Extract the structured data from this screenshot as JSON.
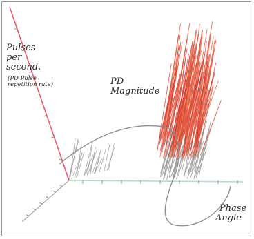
{
  "chart_data": {
    "type": "3d-scatter",
    "labels": {
      "pps_line1": "Pulses",
      "pps_line2": "per",
      "pps_line3": "second.",
      "pps_note_line1": "(PD Pulse",
      "pps_note_line2": "repetition rate)",
      "magnitude_line1": "PD",
      "magnitude_line2": "Magnitude",
      "phase_line1": "Phase",
      "phase_line2": "Angle"
    },
    "colors": {
      "pps_axis": "#e85a6c",
      "phase_axis": "#b8dcc2",
      "sine_curve": "#8f8f8f",
      "grey_pulses": "#9c9c9c",
      "orange_pulses": "#e45a3a",
      "red_pulses": "#d63a2e"
    }
  }
}
